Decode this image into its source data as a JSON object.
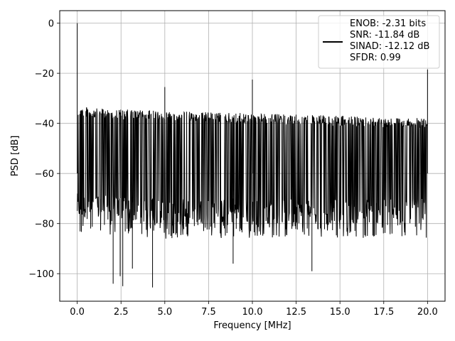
{
  "chart_data": {
    "type": "line",
    "xlabel": "Frequency [MHz]",
    "ylabel": "PSD [dB]",
    "xlim": [
      -1.0,
      21.0
    ],
    "ylim": [
      -111,
      5
    ],
    "x_ticks": [
      0.0,
      2.5,
      5.0,
      7.5,
      10.0,
      12.5,
      15.0,
      17.5,
      20.0
    ],
    "x_tick_labels": [
      "0.0",
      "2.5",
      "5.0",
      "7.5",
      "10.0",
      "12.5",
      "15.0",
      "17.5",
      "20.0"
    ],
    "y_ticks": [
      0,
      -20,
      -40,
      -60,
      -80,
      -100
    ],
    "y_tick_labels": [
      "0",
      "−20",
      "−40",
      "−60",
      "−80",
      "−100"
    ],
    "grid": true,
    "legend_position": "top-right",
    "legend_lines": [
      "ENOB: -2.31 bits",
      "SNR: -11.84 dB",
      "SINAD: -12.12 dB",
      "SFDR: 0.99"
    ],
    "series_color": "#000000",
    "x_range": [
      0.0,
      20.0
    ],
    "noise_floor_upper": {
      "x": [
        0.0,
        1.0,
        5.0,
        10.0,
        15.0,
        20.0
      ],
      "y": [
        -33,
        -34,
        -35,
        -36,
        -37,
        -38
      ]
    },
    "noise_floor_lower": {
      "x": [
        0.0,
        5.0,
        10.0,
        15.0,
        20.0
      ],
      "y": [
        -78,
        -80,
        -80,
        -80,
        -80
      ]
    },
    "peaks": [
      {
        "x": 0.0,
        "y": 0
      },
      {
        "x": 5.0,
        "y": -25.5
      },
      {
        "x": 10.0,
        "y": -22.5
      },
      {
        "x": 20.0,
        "y": -18.5
      }
    ],
    "dips": [
      {
        "x": 2.05,
        "y": -104
      },
      {
        "x": 2.45,
        "y": -101
      },
      {
        "x": 2.6,
        "y": -105
      },
      {
        "x": 3.15,
        "y": -98
      },
      {
        "x": 4.3,
        "y": -105.5
      },
      {
        "x": 8.9,
        "y": -96
      },
      {
        "x": 13.4,
        "y": -99
      }
    ]
  }
}
